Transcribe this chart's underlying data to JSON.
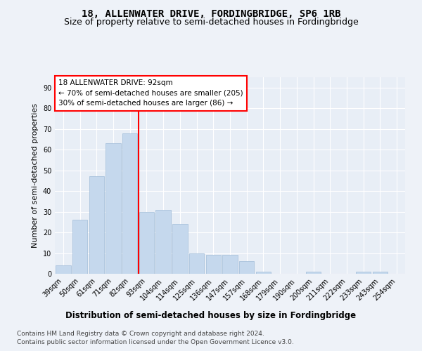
{
  "title": "18, ALLENWATER DRIVE, FORDINGBRIDGE, SP6 1RB",
  "subtitle": "Size of property relative to semi-detached houses in Fordingbridge",
  "xlabel_bottom": "Distribution of semi-detached houses by size in Fordingbridge",
  "ylabel": "Number of semi-detached properties",
  "categories": [
    "39sqm",
    "50sqm",
    "61sqm",
    "71sqm",
    "82sqm",
    "93sqm",
    "104sqm",
    "114sqm",
    "125sqm",
    "136sqm",
    "147sqm",
    "157sqm",
    "168sqm",
    "179sqm",
    "190sqm",
    "200sqm",
    "211sqm",
    "222sqm",
    "233sqm",
    "243sqm",
    "254sqm"
  ],
  "values": [
    4,
    26,
    47,
    63,
    68,
    30,
    31,
    24,
    10,
    9,
    9,
    6,
    1,
    0,
    0,
    1,
    0,
    0,
    1,
    1,
    0
  ],
  "bar_color": "#c5d8ed",
  "bar_edge_color": "#a0bcd8",
  "red_line_index": 4,
  "ylim": [
    0,
    95
  ],
  "yticks": [
    0,
    10,
    20,
    30,
    40,
    50,
    60,
    70,
    80,
    90
  ],
  "annotation_title": "18 ALLENWATER DRIVE: 92sqm",
  "annotation_line1": "← 70% of semi-detached houses are smaller (205)",
  "annotation_line2": "30% of semi-detached houses are larger (86) →",
  "footnote1": "Contains HM Land Registry data © Crown copyright and database right 2024.",
  "footnote2": "Contains public sector information licensed under the Open Government Licence v3.0.",
  "background_color": "#eef2f8",
  "plot_bg_color": "#e8eef6",
  "grid_color": "#ffffff",
  "title_fontsize": 10,
  "subtitle_fontsize": 9,
  "tick_fontsize": 7,
  "ylabel_fontsize": 8,
  "footnote_fontsize": 6.5
}
